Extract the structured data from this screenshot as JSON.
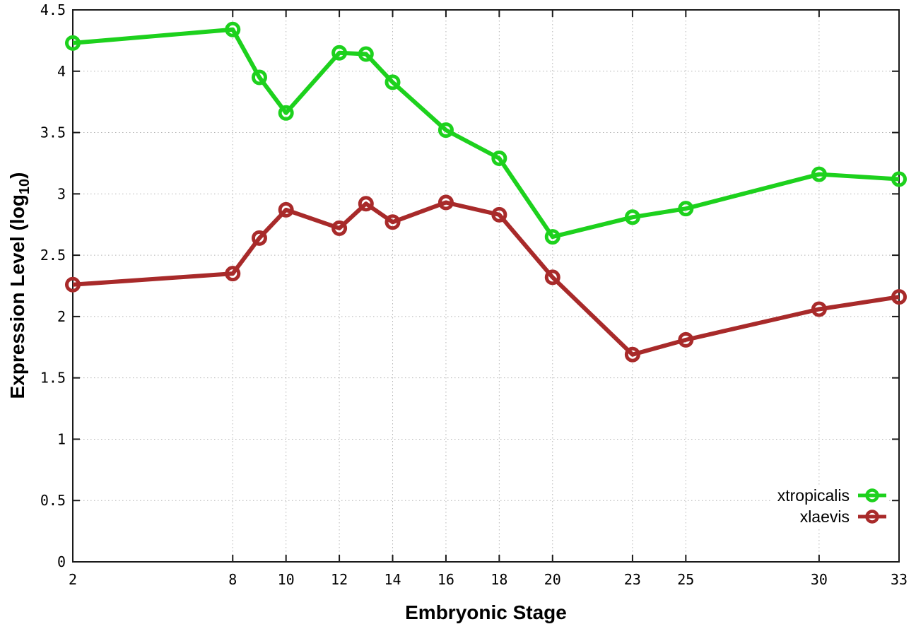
{
  "figure": {
    "background": "#ffffff",
    "border_color": "#1a1a1a",
    "grid_color": "#b4b4b4",
    "text_color": "#000000",
    "y_axis": {
      "title_prefix": "Expression Level (log",
      "title_sub": "10",
      "title_suffix": ")"
    }
  },
  "chart_data": {
    "type": "line",
    "title": "",
    "xlabel": "Embryonic Stage",
    "ylabel": "Expression Level (log10)",
    "xlim": [
      2,
      33
    ],
    "ylim": [
      0,
      4.5
    ],
    "grid": true,
    "legend_position": "bottom-right",
    "x_ticks": [
      2,
      8,
      10,
      12,
      14,
      16,
      18,
      20,
      23,
      25,
      30,
      33
    ],
    "x_tick_labels": [
      "2",
      "8",
      "10",
      "12",
      "14",
      "16",
      "18",
      "20",
      "23",
      "25",
      "30",
      "33"
    ],
    "y_ticks": [
      0,
      0.5,
      1,
      1.5,
      2,
      2.5,
      3,
      3.5,
      4,
      4.5
    ],
    "y_tick_labels": [
      "0",
      "0.5",
      "1",
      "1.5",
      "2",
      "2.5",
      "3",
      "3.5",
      "4",
      "4.5"
    ],
    "x": [
      2,
      8,
      9,
      10,
      12,
      13,
      14,
      16,
      18,
      20,
      23,
      25,
      30,
      33
    ],
    "series": [
      {
        "name": "xtropicalis",
        "color": "#1dd11d",
        "marker": "open-circle",
        "values": [
          4.23,
          4.34,
          3.95,
          3.66,
          4.15,
          4.14,
          3.91,
          3.52,
          3.29,
          2.65,
          2.81,
          2.88,
          3.16,
          3.12
        ]
      },
      {
        "name": "xlaevis",
        "color": "#a82a2a",
        "marker": "open-circle",
        "values": [
          2.26,
          2.35,
          2.64,
          2.87,
          2.72,
          2.92,
          2.77,
          2.93,
          2.83,
          2.32,
          1.69,
          1.81,
          2.06,
          2.16
        ]
      }
    ]
  }
}
